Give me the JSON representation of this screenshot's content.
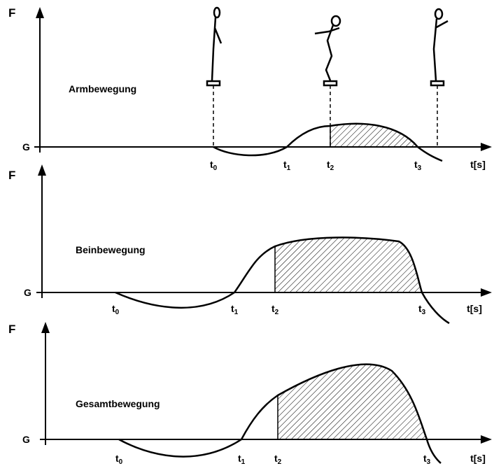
{
  "panels": [
    {
      "y_axis_label": "F",
      "baseline_label": "G",
      "title": "Armbewegung",
      "time_labels": [
        {
          "base": "t",
          "sub": "0"
        },
        {
          "base": "t",
          "sub": "1"
        },
        {
          "base": "t",
          "sub": "2"
        },
        {
          "base": "t",
          "sub": "3"
        }
      ],
      "x_axis_label": "t[s]"
    },
    {
      "y_axis_label": "F",
      "baseline_label": "G",
      "title": "Beinbewegung",
      "time_labels": [
        {
          "base": "t",
          "sub": "0"
        },
        {
          "base": "t",
          "sub": "1"
        },
        {
          "base": "t",
          "sub": "2"
        },
        {
          "base": "t",
          "sub": "3"
        }
      ],
      "x_axis_label": "t[s]"
    },
    {
      "y_axis_label": "F",
      "baseline_label": "G",
      "title": "Gesamtbewegung",
      "time_labels": [
        {
          "base": "t",
          "sub": "0"
        },
        {
          "base": "t",
          "sub": "1"
        },
        {
          "base": "t",
          "sub": "2"
        },
        {
          "base": "t",
          "sub": "3"
        }
      ],
      "x_axis_label": "t[s]"
    }
  ]
}
